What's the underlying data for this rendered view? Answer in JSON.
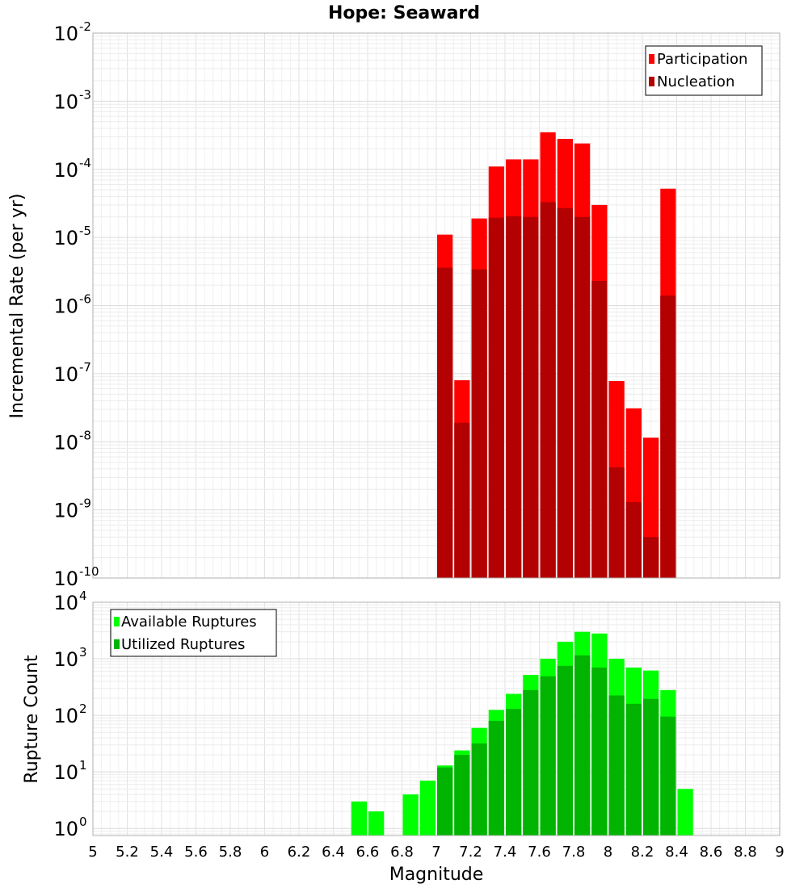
{
  "title": "Hope: Seaward",
  "xlabel": "Magnitude",
  "chart_data": [
    {
      "type": "bar",
      "ylabel": "Incremental Rate (per yr)",
      "yscale": "log",
      "ylim": [
        1e-10,
        0.01
      ],
      "xlim": [
        5,
        9
      ],
      "grid": true,
      "legend_position": "top-right",
      "bin_width": 0.1,
      "x": [
        7.05,
        7.15,
        7.25,
        7.35,
        7.45,
        7.55,
        7.65,
        7.75,
        7.85,
        7.95,
        8.05,
        8.15,
        8.25,
        8.35
      ],
      "series": [
        {
          "name": "Participation",
          "color": "#ff0000",
          "values": [
            1.1e-05,
            8e-08,
            1.9e-05,
            0.00011,
            0.00014,
            0.00014,
            0.00035,
            0.00028,
            0.00024,
            3e-05,
            7.8e-08,
            3.1e-08,
            1.15e-08,
            5.2e-05
          ]
        },
        {
          "name": "Nucleation",
          "color": "#b30000",
          "values": [
            3.6e-06,
            1.9e-08,
            3.4e-06,
            1.95e-05,
            2.05e-05,
            2e-05,
            3.3e-05,
            2.7e-05,
            2e-05,
            2.3e-06,
            4.2e-09,
            1.3e-09,
            4e-10,
            1.4e-06
          ]
        }
      ]
    },
    {
      "type": "bar",
      "ylabel": "Rupture Count",
      "yscale": "log",
      "ylim": [
        0.75,
        10000
      ],
      "xlim": [
        5,
        9
      ],
      "grid": true,
      "legend_position": "top-left",
      "bin_width": 0.1,
      "x": [
        6.55,
        6.65,
        6.85,
        6.95,
        7.05,
        7.15,
        7.25,
        7.35,
        7.45,
        7.55,
        7.65,
        7.75,
        7.85,
        7.95,
        8.05,
        8.15,
        8.25,
        8.35,
        8.45
      ],
      "series": [
        {
          "name": "Available Ruptures",
          "color": "#00ff00",
          "values": [
            3,
            2,
            4,
            7,
            13,
            24,
            60,
            125,
            240,
            520,
            1000,
            2000,
            3000,
            2800,
            1000,
            700,
            620,
            280,
            5
          ]
        },
        {
          "name": "Utilized Ruptures",
          "color": "#00b400",
          "values": [
            0,
            0,
            0,
            0,
            12,
            20,
            32,
            80,
            130,
            280,
            490,
            750,
            1150,
            700,
            225,
            160,
            195,
            95,
            0
          ]
        }
      ]
    }
  ],
  "yticks_top": [
    {
      "base": "10",
      "exp": "-10"
    },
    {
      "base": "10",
      "exp": "-9"
    },
    {
      "base": "10",
      "exp": "-8"
    },
    {
      "base": "10",
      "exp": "-7"
    },
    {
      "base": "10",
      "exp": "-6"
    },
    {
      "base": "10",
      "exp": "-5"
    },
    {
      "base": "10",
      "exp": "-4"
    },
    {
      "base": "10",
      "exp": "-3"
    },
    {
      "base": "10",
      "exp": "-2"
    }
  ],
  "yticks_bottom": [
    {
      "base": "10",
      "exp": "0"
    },
    {
      "base": "10",
      "exp": "1"
    },
    {
      "base": "10",
      "exp": "2"
    },
    {
      "base": "10",
      "exp": "3"
    },
    {
      "base": "10",
      "exp": "4"
    }
  ],
  "xticks": [
    "5",
    "5.2",
    "5.4",
    "5.6",
    "5.8",
    "6",
    "6.2",
    "6.4",
    "6.6",
    "6.8",
    "7",
    "7.2",
    "7.4",
    "7.6",
    "7.8",
    "8",
    "8.2",
    "8.4",
    "8.6",
    "8.8",
    "9"
  ]
}
